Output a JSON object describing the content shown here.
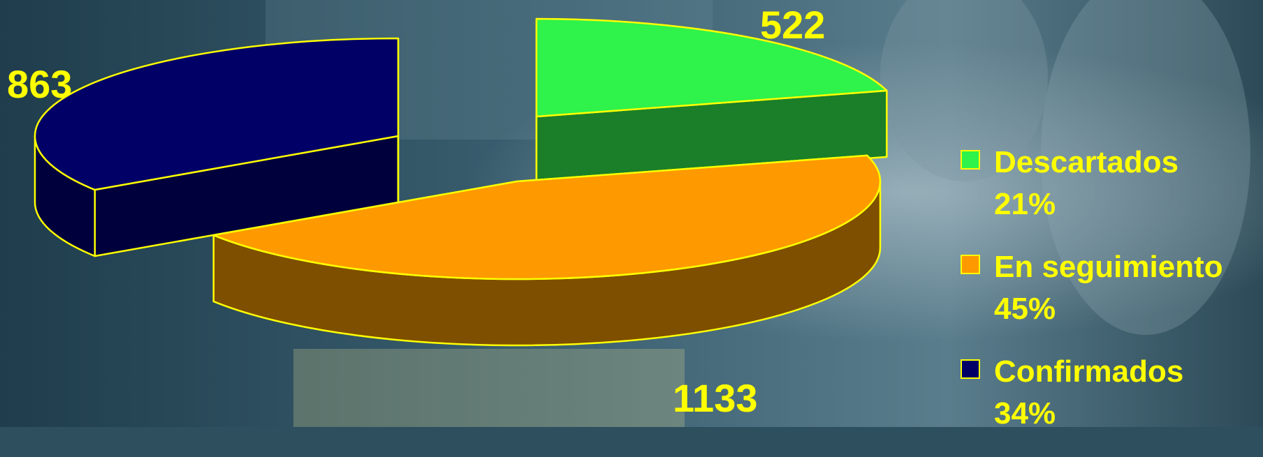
{
  "chart_data": {
    "type": "pie",
    "title": "",
    "data_labels": [
      "522",
      "1133",
      "863"
    ],
    "slices": [
      {
        "name": "Descartados",
        "value": 522,
        "percent_label": "21%",
        "top_color": "#2ff24a",
        "side_color": "#1a7f28"
      },
      {
        "name": "En seguimiento",
        "value": 1133,
        "percent_label": "45%",
        "top_color": "#ff9900",
        "side_color": "#7f4f00"
      },
      {
        "name": "Confirmados",
        "value": 863,
        "percent_label": "34%",
        "top_color": "#000066",
        "side_color": "#00003d"
      }
    ],
    "legend_position": "right",
    "outline_color": "#ffff00",
    "label_color": "#ffff00",
    "style": "exploded-3d"
  }
}
